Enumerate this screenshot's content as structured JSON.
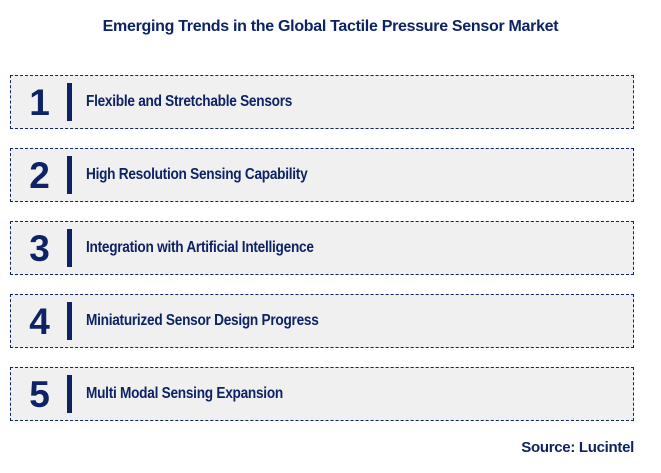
{
  "title": "Emerging Trends in the Global Tactile Pressure Sensor Market",
  "colors": {
    "navy": "#0d2365",
    "item_background": "#f0f0f0",
    "page_background": "#ffffff"
  },
  "items": [
    {
      "number": "1",
      "label": "Flexible and Stretchable Sensors"
    },
    {
      "number": "2",
      "label": "High Resolution Sensing Capability"
    },
    {
      "number": "3",
      "label": "Integration with Artificial Intelligence"
    },
    {
      "number": "4",
      "label": "Miniaturized Sensor Design Progress"
    },
    {
      "number": "5",
      "label": "Multi Modal Sensing Expansion"
    }
  ],
  "source": "Source: Lucintel"
}
